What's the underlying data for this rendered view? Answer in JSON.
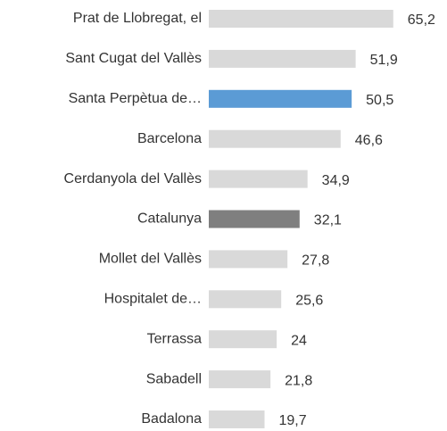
{
  "chart_data": {
    "type": "bar",
    "orientation": "horizontal",
    "categories": [
      "Prat de Llobregat, el",
      "Sant Cugat del Vallès",
      "Santa Perpètua de…",
      "Barcelona",
      "Cerdanyola del Vallès",
      "Catalunya",
      "Mollet del Vallès",
      "Hospitalet de…",
      "Terrassa",
      "Sabadell",
      "Badalona"
    ],
    "values": [
      65.2,
      51.9,
      50.5,
      46.6,
      34.9,
      32.1,
      27.8,
      25.6,
      24,
      21.8,
      19.7
    ],
    "value_labels": [
      "65,2",
      "51,9",
      "50,5",
      "46,6",
      "34,9",
      "32,1",
      "27,8",
      "25,6",
      "24",
      "21,8",
      "19,7"
    ],
    "colors": [
      "#d9d9d9",
      "#d9d9d9",
      "#5b9bd5",
      "#d9d9d9",
      "#d9d9d9",
      "#7f7f7f",
      "#d9d9d9",
      "#d9d9d9",
      "#d9d9d9",
      "#d9d9d9",
      "#d9d9d9"
    ],
    "xlim": [
      0,
      70
    ]
  }
}
